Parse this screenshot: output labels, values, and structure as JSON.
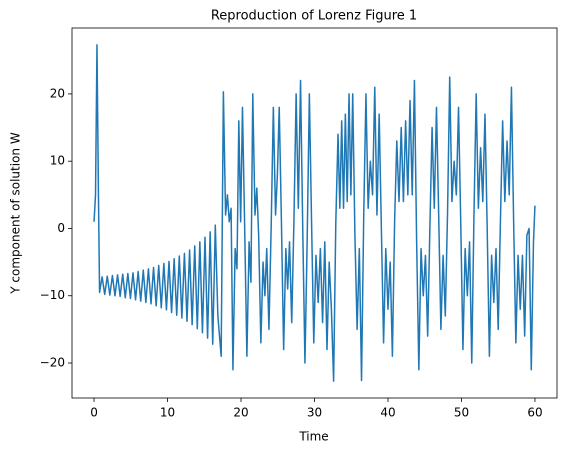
{
  "chart_data": {
    "type": "line",
    "title": "Reproduction of Lorenz Figure 1",
    "xlabel": "Time",
    "ylabel": "Y component of solution W",
    "color": "#1f77b4",
    "xlim": [
      -3,
      63
    ],
    "ylim": [
      -25.2,
      29.8
    ],
    "xticks": [
      0,
      10,
      20,
      30,
      40,
      50,
      60
    ],
    "yticks": [
      {
        "value": -20,
        "label": "−20"
      },
      {
        "value": -10,
        "label": "−10"
      },
      0,
      10,
      20
    ],
    "x": [
      0,
      0.2,
      0.4,
      0.6,
      0.75,
      0.9,
      1.1,
      1.45,
      1.8,
      2.15,
      2.5,
      2.85,
      3.2,
      3.55,
      3.9,
      4.25,
      4.6,
      4.95,
      5.3,
      5.65,
      6.0,
      6.35,
      6.7,
      7.05,
      7.4,
      7.75,
      8.1,
      8.45,
      8.8,
      9.15,
      9.5,
      9.85,
      10.2,
      10.55,
      10.9,
      11.25,
      11.6,
      11.95,
      12.3,
      12.65,
      13.0,
      13.35,
      13.7,
      14.05,
      14.4,
      14.75,
      15.1,
      15.45,
      15.8,
      16.15,
      16.5,
      16.85,
      17.3,
      17.6,
      17.9,
      18.15,
      18.4,
      18.65,
      18.9,
      19.2,
      19.45,
      19.7,
      19.95,
      20.2,
      20.5,
      20.8,
      21.1,
      21.35,
      21.6,
      21.9,
      22.15,
      22.4,
      22.7,
      23.0,
      23.25,
      23.5,
      23.8,
      24.1,
      24.4,
      24.7,
      24.95,
      25.2,
      25.5,
      25.8,
      26.1,
      26.35,
      26.6,
      26.9,
      27.2,
      27.5,
      27.8,
      28.1,
      28.4,
      28.7,
      29.0,
      29.3,
      29.6,
      29.9,
      30.2,
      30.5,
      30.8,
      31.1,
      31.4,
      31.7,
      32.0,
      32.3,
      32.6,
      32.9,
      33.2,
      33.45,
      33.7,
      33.95,
      34.2,
      34.45,
      34.7,
      34.95,
      35.2,
      35.5,
      35.8,
      36.1,
      36.4,
      36.7,
      37.0,
      37.3,
      37.6,
      37.9,
      38.2,
      38.5,
      38.8,
      39.1,
      39.4,
      39.7,
      40.0,
      40.3,
      40.6,
      40.9,
      41.2,
      41.5,
      41.8,
      42.1,
      42.4,
      42.7,
      43.0,
      43.3,
      43.6,
      43.9,
      44.2,
      44.5,
      44.8,
      45.1,
      45.4,
      45.7,
      46.0,
      46.3,
      46.6,
      46.9,
      47.2,
      47.5,
      47.8,
      48.1,
      48.4,
      48.7,
      49.0,
      49.3,
      49.6,
      49.9,
      50.2,
      50.5,
      50.8,
      51.1,
      51.4,
      51.7,
      52.0,
      52.3,
      52.6,
      52.9,
      53.2,
      53.5,
      53.8,
      54.1,
      54.4,
      54.7,
      55.0,
      55.3,
      55.6,
      55.9,
      56.2,
      56.5,
      56.8,
      57.1,
      57.4,
      57.7,
      58.0,
      58.3,
      58.6,
      58.9,
      59.2,
      59.5,
      59.8,
      60.0
    ],
    "values": [
      1,
      5,
      27.3,
      5,
      -9.5,
      -8.5,
      -7.2,
      -9.8,
      -7.1,
      -9.9,
      -7.0,
      -10.0,
      -6.9,
      -10.1,
      -6.8,
      -10.3,
      -6.7,
      -10.4,
      -6.6,
      -10.6,
      -6.4,
      -10.8,
      -6.2,
      -11.0,
      -6.0,
      -11.2,
      -5.8,
      -11.5,
      -5.5,
      -11.8,
      -5.2,
      -12.1,
      -4.9,
      -12.5,
      -4.5,
      -12.9,
      -4.1,
      -13.3,
      -3.7,
      -13.8,
      -3.2,
      -14.3,
      -2.6,
      -14.9,
      -2.0,
      -15.5,
      -1.3,
      -16.3,
      -0.5,
      -17.2,
      0.5,
      -13,
      -19,
      20.3,
      2,
      5,
      1,
      3,
      -21,
      -3,
      -6,
      16,
      1,
      18,
      0,
      -19,
      -2,
      -8,
      20,
      2,
      6,
      -1,
      -17,
      -5,
      -10,
      -3,
      -15,
      0,
      18,
      2,
      8,
      18,
      1,
      -18,
      -3,
      -9,
      -2,
      -14,
      1,
      20,
      3,
      22,
      0,
      -20,
      -2,
      20,
      1,
      -17,
      -4,
      -11,
      -3,
      -14,
      -2,
      -18,
      -5,
      -12,
      -22.7,
      1,
      14,
      3,
      16,
      3,
      17,
      4,
      20,
      5,
      20,
      -1,
      -15,
      -3,
      -22.6,
      2,
      20,
      3,
      10,
      5,
      21,
      2,
      17,
      0,
      -17,
      -3,
      -12,
      -5,
      -19,
      1,
      13,
      4,
      15,
      4,
      16,
      5,
      19,
      5,
      22,
      -2,
      -21,
      -3,
      -10,
      -4,
      -16,
      0,
      15,
      3,
      18,
      2,
      -15,
      -4,
      -13,
      2,
      22.5,
      4,
      10,
      5,
      18,
      1,
      -18,
      -3,
      -10,
      -2,
      -20,
      2,
      20,
      3,
      12,
      4,
      17,
      0,
      -19,
      -4,
      -11,
      -3,
      -15,
      1,
      16,
      4,
      13,
      5,
      21,
      1,
      -17,
      -4,
      -12,
      -4,
      -16,
      -1,
      0,
      -21,
      -2,
      3.4
    ]
  }
}
